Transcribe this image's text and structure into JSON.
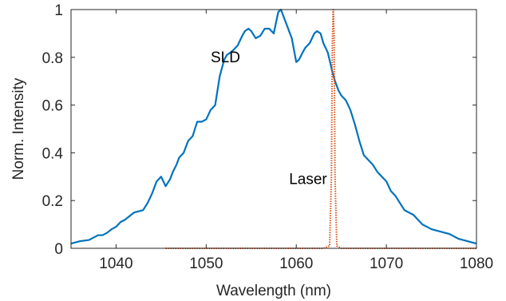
{
  "chart_data": {
    "type": "line",
    "title": "",
    "xlabel": "Wavelength (nm)",
    "ylabel": "Norm. Intensity",
    "xlim": [
      1035,
      1080
    ],
    "ylim": [
      0,
      1
    ],
    "xticks": [
      1040,
      1050,
      1060,
      1070,
      1080
    ],
    "xtick_labels": [
      "1040",
      "1050",
      "1060",
      "1070",
      "1080"
    ],
    "yticks": [
      0,
      0.2,
      0.4,
      0.6,
      0.8,
      1
    ],
    "ytick_labels": [
      "0",
      "0.2",
      "0.4",
      "0.6",
      "0.8",
      "1"
    ],
    "grid": false,
    "box": true,
    "annotations": [
      {
        "text": "SLD",
        "x": 1050.5,
        "y": 0.78
      },
      {
        "text": "Laser",
        "x": 1059.2,
        "y": 0.27
      }
    ],
    "series": [
      {
        "color": "#0072BD",
        "style": "solid",
        "x": [
          1035,
          1036,
          1037,
          1037.5,
          1038,
          1038.5,
          1039,
          1039.5,
          1040,
          1040.5,
          1041,
          1041.5,
          1042,
          1042.5,
          1043,
          1043.5,
          1044,
          1044.5,
          1045,
          1045.5,
          1046,
          1046.3,
          1046.7,
          1047,
          1047.5,
          1048,
          1048.5,
          1049,
          1049.5,
          1050,
          1050.5,
          1051,
          1051.5,
          1052,
          1052.3,
          1052.7,
          1053,
          1053.5,
          1054,
          1054.3,
          1054.7,
          1055,
          1055.5,
          1056,
          1056.5,
          1057,
          1057.5,
          1058,
          1058.3,
          1058.7,
          1059,
          1059.5,
          1060,
          1060.3,
          1060.7,
          1061,
          1061.5,
          1062,
          1062.3,
          1062.7,
          1063,
          1063.5,
          1064,
          1064.3,
          1064.7,
          1065,
          1065.5,
          1066,
          1066.5,
          1067,
          1067.5,
          1068,
          1068.5,
          1069,
          1069.5,
          1070,
          1070.5,
          1071,
          1071.5,
          1072,
          1072.5,
          1073,
          1073.5,
          1074,
          1074.5,
          1075,
          1075.5,
          1076,
          1076.5,
          1077,
          1077.5,
          1078,
          1078.5,
          1079,
          1079.5,
          1080
        ],
        "y": [
          0.02,
          0.03,
          0.035,
          0.045,
          0.055,
          0.055,
          0.065,
          0.08,
          0.09,
          0.11,
          0.12,
          0.135,
          0.15,
          0.155,
          0.16,
          0.19,
          0.23,
          0.28,
          0.3,
          0.26,
          0.29,
          0.32,
          0.35,
          0.38,
          0.4,
          0.45,
          0.47,
          0.53,
          0.53,
          0.54,
          0.58,
          0.6,
          0.72,
          0.79,
          0.81,
          0.82,
          0.83,
          0.85,
          0.89,
          0.91,
          0.92,
          0.91,
          0.88,
          0.89,
          0.92,
          0.92,
          0.9,
          0.99,
          1.0,
          0.96,
          0.93,
          0.88,
          0.78,
          0.79,
          0.82,
          0.84,
          0.86,
          0.9,
          0.91,
          0.9,
          0.86,
          0.82,
          0.74,
          0.7,
          0.66,
          0.64,
          0.62,
          0.58,
          0.52,
          0.45,
          0.39,
          0.37,
          0.35,
          0.32,
          0.3,
          0.28,
          0.24,
          0.22,
          0.19,
          0.16,
          0.15,
          0.14,
          0.12,
          0.1,
          0.09,
          0.08,
          0.075,
          0.07,
          0.065,
          0.06,
          0.05,
          0.04,
          0.035,
          0.03,
          0.025,
          0.02
        ]
      },
      {
        "color": "#D95319",
        "style": "dotted",
        "x": [
          1045.5,
          1050,
          1055,
          1060,
          1063,
          1063.7,
          1063.9,
          1064.0,
          1064.1,
          1064.2,
          1064.3,
          1064.5,
          1065,
          1070,
          1075,
          1080
        ],
        "y": [
          0,
          0,
          0,
          0,
          0,
          0.01,
          0.3,
          0.85,
          1.0,
          0.9,
          0.3,
          0.01,
          0,
          0,
          0,
          0
        ]
      }
    ]
  }
}
